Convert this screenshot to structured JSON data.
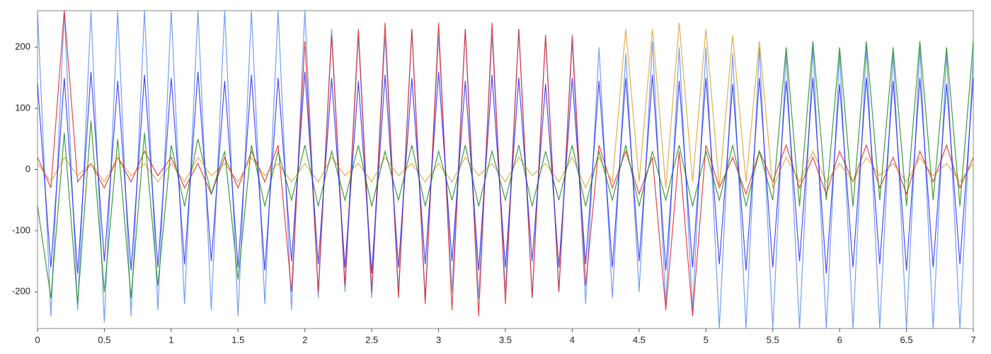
{
  "chart_data": {
    "type": "line",
    "x": [
      0,
      0.1,
      0.2,
      0.3,
      0.4,
      0.5,
      0.6,
      0.7,
      0.8,
      0.9,
      1,
      1.1,
      1.2,
      1.3,
      1.4,
      1.5,
      1.6,
      1.7,
      1.8,
      1.9,
      2,
      2.1,
      2.2,
      2.3,
      2.4,
      2.5,
      2.6,
      2.7,
      2.8,
      2.9,
      3,
      3.1,
      3.2,
      3.3,
      3.4,
      3.5,
      3.6,
      3.7,
      3.8,
      3.9,
      4,
      4.1,
      4.2,
      4.3,
      4.4,
      4.5,
      4.6,
      4.7,
      4.8,
      4.9,
      5,
      5.1,
      5.2,
      5.3,
      5.4,
      5.5,
      5.6,
      5.7,
      5.8,
      5.9,
      6,
      6.1,
      6.2,
      6.3,
      6.4,
      6.5,
      6.6,
      6.7,
      6.8,
      6.9,
      7
    ],
    "series": [
      {
        "color": "#5b8def",
        "values": [
          260,
          -240,
          260,
          -230,
          260,
          -250,
          260,
          -240,
          260,
          -230,
          260,
          -220,
          260,
          -230,
          260,
          -240,
          260,
          -220,
          260,
          -230,
          260,
          -210,
          230,
          -200,
          220,
          -210,
          220,
          -200,
          230,
          -210,
          220,
          -200,
          230,
          -210,
          220,
          -200,
          230,
          -210,
          220,
          -200,
          210,
          -220,
          200,
          -210,
          190,
          -200,
          210,
          -220,
          200,
          -230,
          200,
          -260,
          190,
          -260,
          200,
          -260,
          190,
          -260,
          200,
          -260,
          190,
          -260,
          200,
          -260,
          190,
          -260,
          200,
          -260,
          190,
          -260,
          190
        ]
      },
      {
        "color": "#e02424",
        "values": [
          20,
          -30,
          260,
          -20,
          10,
          -30,
          20,
          -20,
          30,
          -10,
          20,
          -30,
          10,
          -40,
          20,
          -30,
          30,
          -20,
          40,
          -200,
          210,
          -200,
          220,
          -190,
          230,
          -200,
          240,
          -210,
          230,
          -220,
          240,
          -230,
          230,
          -240,
          240,
          -220,
          230,
          -210,
          220,
          -200,
          220,
          -190,
          40,
          -30,
          30,
          -40,
          20,
          -230,
          30,
          -240,
          40,
          -30,
          20,
          -40,
          30,
          -20,
          40,
          -30,
          20,
          -40,
          30,
          -20,
          40,
          -30,
          20,
          -40,
          30,
          -20,
          40,
          -30,
          20
        ]
      },
      {
        "color": "#e0a030",
        "values": [
          10,
          -20,
          20,
          -10,
          10,
          -20,
          20,
          -10,
          10,
          -20,
          10,
          -20,
          20,
          -10,
          10,
          -20,
          20,
          -10,
          10,
          -20,
          10,
          -20,
          20,
          -10,
          10,
          -20,
          20,
          -10,
          10,
          -20,
          10,
          -20,
          20,
          -10,
          10,
          -20,
          20,
          -10,
          10,
          -20,
          20,
          -30,
          20,
          -20,
          230,
          -20,
          230,
          -30,
          240,
          -20,
          230,
          -30,
          220,
          -20,
          210,
          -30,
          20,
          -20,
          30,
          -20,
          10,
          -20,
          20,
          -10,
          10,
          -20,
          20,
          -10,
          10,
          -20,
          10
        ]
      },
      {
        "color": "#1c8c1c",
        "values": [
          -60,
          -210,
          60,
          -220,
          80,
          -200,
          50,
          -210,
          60,
          -190,
          40,
          -60,
          50,
          -40,
          30,
          -180,
          40,
          -60,
          30,
          -50,
          40,
          -60,
          30,
          -50,
          40,
          -60,
          30,
          -50,
          40,
          -60,
          30,
          -50,
          40,
          -60,
          30,
          -50,
          40,
          -60,
          30,
          -50,
          40,
          -60,
          30,
          -50,
          40,
          -60,
          30,
          -50,
          40,
          -60,
          30,
          -50,
          40,
          -60,
          30,
          -50,
          200,
          -60,
          210,
          -50,
          200,
          -60,
          210,
          -50,
          200,
          -60,
          210,
          -50,
          200,
          -60,
          210
        ]
      },
      {
        "color": "#2a2af0",
        "values": [
          140,
          -160,
          150,
          -170,
          160,
          -150,
          145,
          -165,
          155,
          -160,
          150,
          -155,
          160,
          -150,
          145,
          -160,
          155,
          -165,
          150,
          -150,
          160,
          -155,
          150,
          -160,
          145,
          -170,
          155,
          -160,
          150,
          -155,
          160,
          -150,
          145,
          -165,
          155,
          -160,
          150,
          -150,
          140,
          -160,
          150,
          -155,
          145,
          -160,
          150,
          -150,
          155,
          -165,
          145,
          -160,
          150,
          -155,
          140,
          -165,
          150,
          -160,
          145,
          -150,
          150,
          -170,
          140,
          -160,
          150,
          -155,
          145,
          -165,
          150,
          -160,
          140,
          -155,
          150
        ]
      }
    ],
    "xlim": [
      0,
      7
    ],
    "ylim": [
      -260,
      260
    ],
    "xticks": [
      0,
      0.5,
      1,
      1.5,
      2,
      2.5,
      3,
      3.5,
      4,
      4.5,
      5,
      5.5,
      6,
      6.5,
      7
    ],
    "yticks": [
      -200,
      -100,
      0,
      100,
      200
    ]
  }
}
